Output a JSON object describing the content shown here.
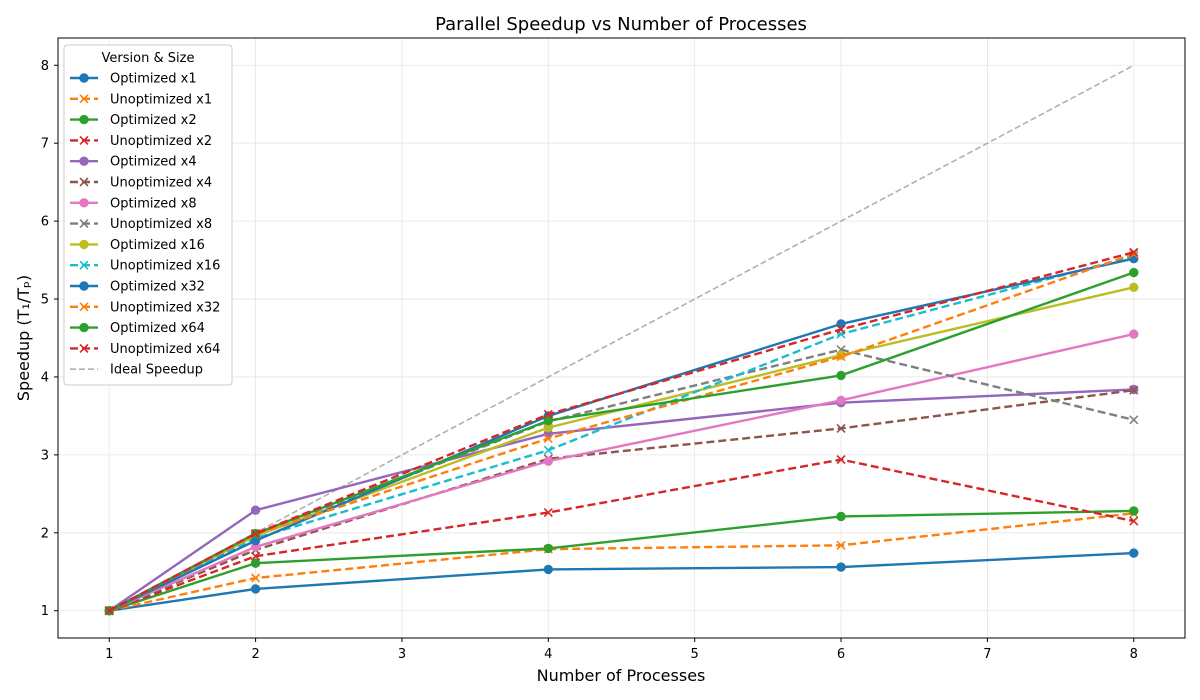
{
  "chart_data": {
    "type": "line",
    "title": "Parallel Speedup vs Number of Processes",
    "xlabel": "Number of Processes",
    "ylabel": "Speedup (T₁/Tₚ)",
    "xlim": [
      0.65,
      8.35
    ],
    "ylim": [
      0.65,
      8.35
    ],
    "xticks": [
      1,
      2,
      3,
      4,
      5,
      6,
      7,
      8
    ],
    "yticks": [
      1,
      2,
      3,
      4,
      5,
      6,
      7,
      8
    ],
    "grid": true,
    "legend": {
      "title": "Version & Size",
      "position": "top-left"
    },
    "x": [
      1,
      2,
      4,
      6,
      8
    ],
    "series": [
      {
        "name": "Optimized x1",
        "values": [
          1,
          1.28,
          1.53,
          1.56,
          1.74
        ],
        "color": "#1f77b4",
        "style": "solid",
        "marker": "circle"
      },
      {
        "name": "Unoptimized x1",
        "values": [
          1,
          1.42,
          1.79,
          1.84,
          2.25
        ],
        "color": "#ff7f0e",
        "style": "dashed",
        "marker": "x"
      },
      {
        "name": "Optimized x2",
        "values": [
          1,
          1.61,
          1.8,
          2.21,
          2.28
        ],
        "color": "#2ca02c",
        "style": "solid",
        "marker": "circle"
      },
      {
        "name": "Unoptimized x2",
        "values": [
          1,
          1.7,
          2.26,
          2.94,
          2.15
        ],
        "color": "#d62728",
        "style": "dashed",
        "marker": "x"
      },
      {
        "name": "Optimized x4",
        "values": [
          1,
          2.29,
          3.27,
          3.67,
          3.84
        ],
        "color": "#9467bd",
        "style": "solid",
        "marker": "circle"
      },
      {
        "name": "Unoptimized x4",
        "values": [
          1,
          1.78,
          2.95,
          3.34,
          3.83
        ],
        "color": "#8c564b",
        "style": "dashed",
        "marker": "x"
      },
      {
        "name": "Optimized x8",
        "values": [
          1,
          1.82,
          2.92,
          3.7,
          4.55
        ],
        "color": "#e377c2",
        "style": "solid",
        "marker": "circle"
      },
      {
        "name": "Unoptimized x8",
        "values": [
          1,
          1.97,
          3.43,
          4.35,
          3.45
        ],
        "color": "#7f7f7f",
        "style": "dashed",
        "marker": "x"
      },
      {
        "name": "Optimized x16",
        "values": [
          1,
          1.96,
          3.35,
          4.28,
          5.15
        ],
        "color": "#bcbd22",
        "style": "solid",
        "marker": "circle"
      },
      {
        "name": "Unoptimized x16",
        "values": [
          1,
          1.93,
          3.06,
          4.55,
          5.55
        ],
        "color": "#17becf",
        "style": "dashed",
        "marker": "x"
      },
      {
        "name": "Optimized x32",
        "values": [
          1,
          1.9,
          3.5,
          4.68,
          5.52
        ],
        "color": "#1f77b4",
        "style": "solid",
        "marker": "circle"
      },
      {
        "name": "Unoptimized x32",
        "values": [
          1,
          1.98,
          3.21,
          4.26,
          5.58
        ],
        "color": "#ff7f0e",
        "style": "dashed",
        "marker": "x"
      },
      {
        "name": "Optimized x64",
        "values": [
          1,
          1.99,
          3.44,
          4.02,
          5.34
        ],
        "color": "#2ca02c",
        "style": "solid",
        "marker": "circle"
      },
      {
        "name": "Unoptimized x64",
        "values": [
          1,
          1.99,
          3.52,
          4.61,
          5.6
        ],
        "color": "#d62728",
        "style": "dashed",
        "marker": "x"
      }
    ],
    "ideal": {
      "name": "Ideal Speedup",
      "x": [
        1,
        8
      ],
      "values": [
        1,
        8
      ],
      "color": "#b0b0b0",
      "style": "dashed"
    }
  }
}
